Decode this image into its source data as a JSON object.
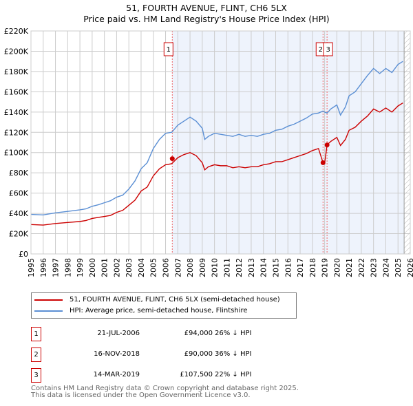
{
  "chart_data": {
    "type": "line",
    "title": "51, FOURTH AVENUE, FLINT, CH6 5LX",
    "subtitle": "Price paid vs. HM Land Registry's House Price Index (HPI)",
    "xlim": [
      1995,
      2026
    ],
    "ylim": [
      0,
      220000
    ],
    "y_ticks": [
      "£0",
      "£20K",
      "£40K",
      "£60K",
      "£80K",
      "£100K",
      "£120K",
      "£140K",
      "£160K",
      "£180K",
      "£200K",
      "£220K"
    ],
    "x_ticks": [
      "1995",
      "1996",
      "1997",
      "1998",
      "1999",
      "2000",
      "2001",
      "2002",
      "2003",
      "2004",
      "2005",
      "2006",
      "2007",
      "2008",
      "2009",
      "2010",
      "2011",
      "2012",
      "2013",
      "2014",
      "2015",
      "2016",
      "2017",
      "2018",
      "2019",
      "2020",
      "2021",
      "2022",
      "2023",
      "2024",
      "2025",
      "2026"
    ],
    "shaded_range": [
      2006.55,
      2025.5
    ],
    "hatched_from": 2025.5,
    "x": [
      1995,
      1996,
      1997,
      1998,
      1999,
      1999.5,
      2000,
      2000.5,
      2001,
      2001.5,
      2002,
      2002.5,
      2003,
      2003.5,
      2004,
      2004.5,
      2005,
      2005.5,
      2006,
      2006.5,
      2007,
      2007.5,
      2008,
      2008.5,
      2009,
      2009.2,
      2009.5,
      2010,
      2010.5,
      2011,
      2011.5,
      2012,
      2012.5,
      2013,
      2013.5,
      2014,
      2014.5,
      2015,
      2015.5,
      2016,
      2016.5,
      2017,
      2017.5,
      2018,
      2018.5,
      2018.87,
      2019,
      2019.2,
      2019.5,
      2020,
      2020.3,
      2020.7,
      2021,
      2021.5,
      2022,
      2022.5,
      2023,
      2023.5,
      2024,
      2024.5,
      2025,
      2025.4
    ],
    "series": [
      {
        "name": "51, FOURTH AVENUE, FLINT, CH6 5LX (semi-detached house)",
        "color": "#cc0000",
        "values": [
          29000,
          28500,
          30000,
          31000,
          32000,
          33000,
          35000,
          36000,
          37000,
          38000,
          41000,
          43000,
          48000,
          53000,
          62000,
          66000,
          77000,
          84000,
          88000,
          89000,
          95000,
          98000,
          100000,
          97000,
          90000,
          83000,
          86000,
          88000,
          87000,
          87000,
          85000,
          86000,
          85000,
          86000,
          86000,
          88000,
          89000,
          91000,
          91000,
          93000,
          95000,
          97000,
          99000,
          102000,
          104000,
          90000,
          89000,
          107500,
          111000,
          115000,
          107000,
          113000,
          122000,
          125000,
          131000,
          136000,
          143000,
          140000,
          144000,
          140000,
          146000,
          149000
        ]
      },
      {
        "name": "HPI: Average price, semi-detached house, Flintshire",
        "color": "#5b8fd4",
        "values": [
          39000,
          38500,
          40500,
          42000,
          43500,
          44500,
          47000,
          48500,
          50500,
          52500,
          56000,
          58000,
          64000,
          72000,
          84000,
          90000,
          104000,
          113000,
          119000,
          120000,
          127000,
          131000,
          135000,
          131000,
          124000,
          113000,
          116000,
          119000,
          118000,
          117000,
          116000,
          118000,
          116000,
          117000,
          116000,
          118000,
          119000,
          122000,
          123000,
          126000,
          128000,
          131000,
          134000,
          138000,
          139000,
          141000,
          140000,
          139000,
          143000,
          147000,
          137000,
          145000,
          156000,
          160000,
          168000,
          176000,
          183000,
          178000,
          183000,
          179000,
          187000,
          190000
        ]
      }
    ],
    "sales": [
      {
        "label": "1",
        "date": "21-JUL-2006",
        "x": 2006.55,
        "price": 94000,
        "price_text": "£94,000",
        "hpi_text": "26% ↓ HPI"
      },
      {
        "label": "2",
        "date": "16-NOV-2018",
        "x": 2018.87,
        "price": 90000,
        "price_text": "£90,000",
        "hpi_text": "36% ↓ HPI"
      },
      {
        "label": "3",
        "date": "14-MAR-2019",
        "x": 2019.2,
        "price": 107500,
        "price_text": "£107,500",
        "hpi_text": "22% ↓ HPI"
      }
    ],
    "legend_position": "below"
  },
  "footer": [
    "Contains HM Land Registry data © Crown copyright and database right 2025.",
    "This data is licensed under the Open Government Licence v3.0."
  ]
}
